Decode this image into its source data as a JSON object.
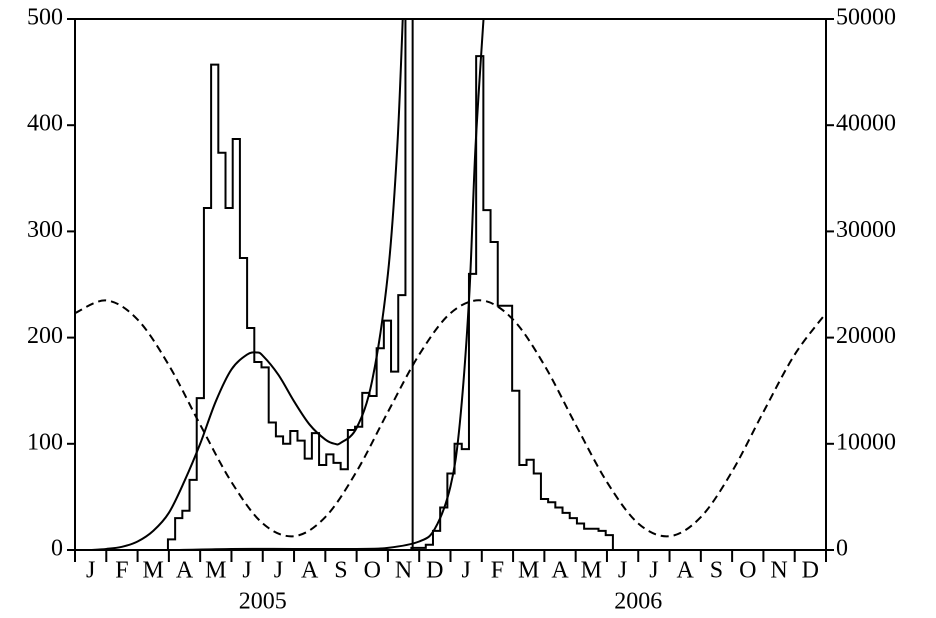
{
  "chart_data": {
    "type": "line",
    "categories": [
      "J",
      "F",
      "M",
      "A",
      "M",
      "J",
      "J",
      "A",
      "S",
      "O",
      "N",
      "D",
      "J",
      "F",
      "M",
      "A",
      "M",
      "J",
      "J",
      "A",
      "S",
      "O",
      "N",
      "D"
    ],
    "year_labels": [
      "2005",
      "2006"
    ],
    "xlim": [
      0,
      24
    ],
    "ylim": [
      0,
      500
    ],
    "yticks": [
      0,
      100,
      200,
      300,
      400,
      500
    ],
    "y2lim": [
      0,
      50000
    ],
    "y2ticks": [
      0,
      10000,
      20000,
      30000,
      40000,
      50000
    ],
    "series": [
      {
        "style": "step",
        "color": "#000000",
        "x": [
          2.97,
          3.2,
          3.43,
          3.66,
          3.89,
          4.12,
          4.35,
          4.58,
          4.81,
          5.04,
          5.27,
          5.5,
          5.73,
          5.96,
          6.19,
          6.42,
          6.65,
          6.88,
          7.11,
          7.34,
          7.57,
          7.8,
          8.03,
          8.26,
          8.49,
          8.72,
          8.95,
          9.18,
          9.41,
          9.64,
          9.87,
          10.1,
          10.33,
          10.56
        ],
        "values": [
          10,
          30,
          37,
          66,
          143,
          322,
          457,
          374,
          322,
          387,
          275,
          209,
          177,
          172,
          120,
          107,
          100,
          112,
          103,
          86,
          110,
          80,
          90,
          82,
          76,
          113,
          116,
          148,
          145,
          190,
          216,
          168,
          240,
          600
        ]
      },
      {
        "style": "step",
        "color": "#000000",
        "x": [
          10.75,
          10.98,
          11.21,
          11.44,
          11.67,
          11.9,
          12.13,
          12.36,
          12.59,
          12.82,
          13.05,
          13.28,
          13.51,
          13.74,
          13.97,
          14.2,
          14.43,
          14.66,
          14.89,
          15.12,
          15.35,
          15.58,
          15.81,
          16.04,
          16.27,
          16.5,
          16.73,
          16.96
        ],
        "values": [
          2,
          2,
          5,
          18,
          40,
          72,
          100,
          95,
          260,
          465,
          320,
          290,
          230,
          230,
          150,
          80,
          85,
          72,
          48,
          45,
          40,
          35,
          30,
          25,
          20,
          20,
          18,
          14
        ]
      },
      {
        "style": "solid",
        "color": "#000000",
        "x": [
          0.5,
          1,
          1.5,
          2,
          2.5,
          3,
          3.5,
          4,
          4.5,
          5,
          5.5,
          5.8,
          6,
          6.5,
          7,
          7.5,
          8,
          8.3,
          8.5,
          9,
          9.5,
          10,
          10.3,
          10.5
        ],
        "values": [
          0,
          1,
          3,
          8,
          18,
          35,
          65,
          100,
          140,
          170,
          184,
          186,
          183,
          165,
          140,
          118,
          104,
          100,
          101,
          115,
          160,
          260,
          380,
          520
        ]
      },
      {
        "style": "solid",
        "color": "#000000",
        "x": [
          0.5,
          3,
          5,
          7,
          9,
          10,
          11,
          11.5,
          12,
          12.3,
          12.6,
          12.8,
          13.1
        ],
        "values": [
          0,
          0,
          1,
          1,
          1,
          2,
          8,
          20,
          60,
          120,
          240,
          380,
          520
        ]
      },
      {
        "style": "dashed",
        "color": "#000000",
        "x": [
          0,
          1,
          2,
          3,
          4,
          5,
          6,
          7,
          8,
          9,
          10,
          11,
          12,
          13,
          14,
          15,
          16,
          17,
          18,
          19,
          20,
          21,
          22,
          23,
          24
        ],
        "values": [
          223,
          235,
          217,
          174,
          118,
          64,
          25,
          13,
          31,
          74,
          130,
          184,
          223,
          235,
          217,
          174,
          118,
          64,
          25,
          13,
          31,
          74,
          130,
          184,
          223
        ]
      }
    ]
  }
}
